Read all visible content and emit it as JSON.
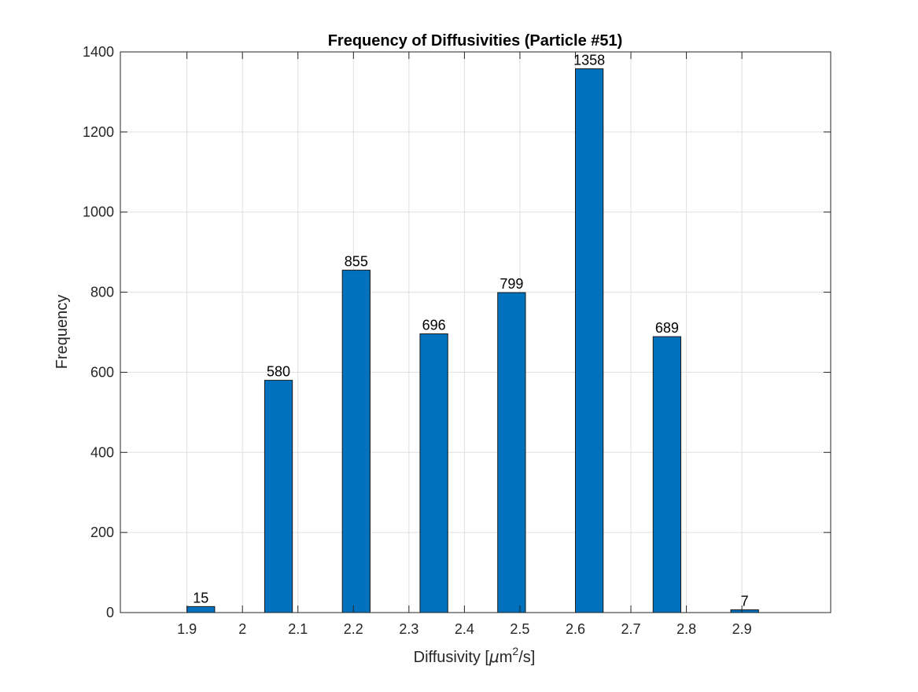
{
  "chart_data": {
    "type": "bar",
    "title": "Frequency of Diffusivities (Particle #51)",
    "xlabel": "Diffusivity [μm²/s]",
    "xlabel_parts": {
      "before": "Diffusivity [",
      "mu": "μ",
      "m": "m",
      "sup": "2",
      "after": "/s]"
    },
    "ylabel": "Frequency",
    "bin_edges": [
      [
        1.9,
        1.95
      ],
      [
        2.04,
        2.09
      ],
      [
        2.18,
        2.23
      ],
      [
        2.32,
        2.37
      ],
      [
        2.46,
        2.51
      ],
      [
        2.6,
        2.65
      ],
      [
        2.74,
        2.79
      ],
      [
        2.88,
        2.93
      ]
    ],
    "values": [
      15,
      580,
      855,
      696,
      799,
      1358,
      689,
      7
    ],
    "data_labels": [
      "15",
      "580",
      "855",
      "696",
      "799",
      "1358",
      "689",
      "7"
    ],
    "xlim": [
      1.78,
      3.06
    ],
    "ylim": [
      0,
      1400
    ],
    "xticks": [
      1.9,
      2.0,
      2.1,
      2.2,
      2.3,
      2.4,
      2.5,
      2.6,
      2.7,
      2.8,
      2.9
    ],
    "xtick_labels": [
      "1.9",
      "2",
      "2.1",
      "2.2",
      "2.3",
      "2.4",
      "2.5",
      "2.6",
      "2.7",
      "2.8",
      "2.9"
    ],
    "yticks": [
      0,
      200,
      400,
      600,
      800,
      1000,
      1200,
      1400
    ],
    "ytick_labels": [
      "0",
      "200",
      "400",
      "600",
      "800",
      "1000",
      "1200",
      "1400"
    ],
    "grid": true,
    "bar_color": "#0072bd",
    "bar_edge_color": "#1a1a1a"
  }
}
